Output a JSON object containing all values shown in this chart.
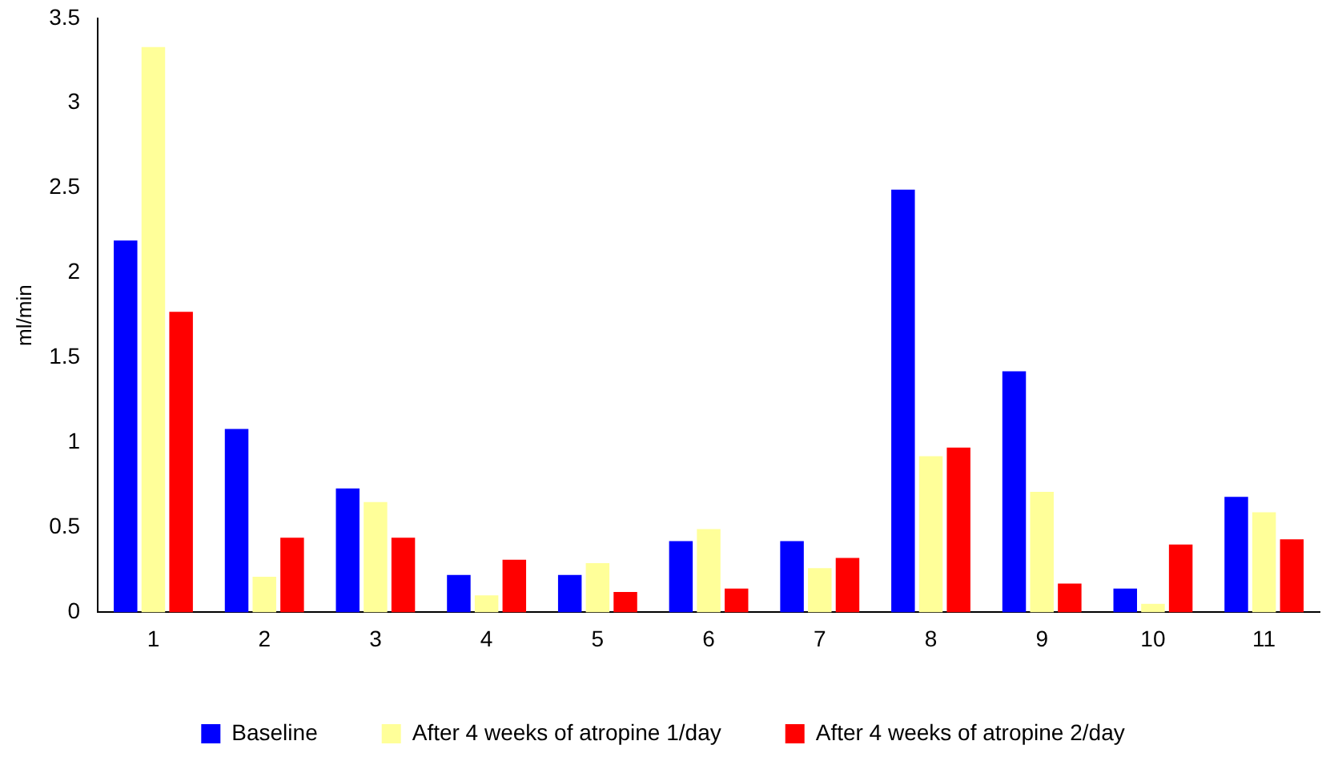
{
  "chart_data": {
    "type": "bar",
    "ylabel": "ml/min",
    "categories": [
      "1",
      "2",
      "3",
      "4",
      "5",
      "6",
      "7",
      "8",
      "9",
      "10",
      "11"
    ],
    "series": [
      {
        "name": "Baseline",
        "color": "#0000ff",
        "values": [
          2.19,
          1.08,
          0.73,
          0.22,
          0.22,
          0.42,
          0.42,
          2.49,
          1.42,
          0.14,
          0.68
        ]
      },
      {
        "name": "After 4 weeks of atropine 1/day",
        "color": "#ffff99",
        "values": [
          3.33,
          0.21,
          0.65,
          0.1,
          0.29,
          0.49,
          0.26,
          0.92,
          0.71,
          0.05,
          0.59
        ]
      },
      {
        "name": "After 4 weeks of atropine 2/day",
        "color": "#ff0000",
        "values": [
          1.77,
          0.44,
          0.44,
          0.31,
          0.12,
          0.14,
          0.32,
          0.97,
          0.17,
          0.4,
          0.43
        ]
      }
    ],
    "ylim": [
      0,
      3.5
    ],
    "yticks": [
      0,
      0.5,
      1,
      1.5,
      2,
      2.5,
      3,
      3.5
    ],
    "grid": false,
    "legend": "bottom"
  }
}
